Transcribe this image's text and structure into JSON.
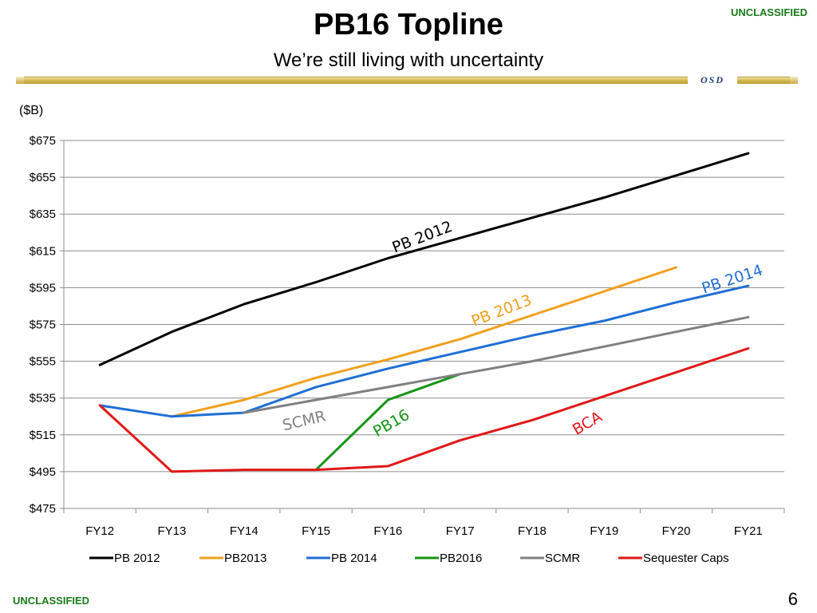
{
  "header": {
    "title": "PB16 Topline",
    "subtitle": "We’re still living with uncertainty",
    "classification_top": "UNCLASSIFIED",
    "logo_text": "OSD"
  },
  "footer": {
    "classification_bottom": "UNCLASSIFIED",
    "page_number": "6"
  },
  "chart_data": {
    "type": "line",
    "unit_label": "($B)",
    "x": [
      "FY12",
      "FY13",
      "FY14",
      "FY15",
      "FY16",
      "FY17",
      "FY18",
      "FY19",
      "FY20",
      "FY21"
    ],
    "ylim": [
      475,
      675
    ],
    "yticks": [
      "$475",
      "$495",
      "$515",
      "$535",
      "$555",
      "$575",
      "$595",
      "$615",
      "$635",
      "$655",
      "$675"
    ],
    "ytick_values": [
      475,
      495,
      515,
      535,
      555,
      575,
      595,
      615,
      635,
      655,
      675
    ],
    "grid": true,
    "legend_position": "bottom",
    "series": [
      {
        "name": "PB 2012",
        "color": "#000000",
        "values": [
          553,
          571,
          586,
          598,
          611,
          622,
          633,
          644,
          656,
          668
        ]
      },
      {
        "name": "PB2013",
        "color": "#f0a01e",
        "values": [
          null,
          525,
          534,
          546,
          556,
          567,
          580,
          593,
          606,
          null
        ]
      },
      {
        "name": "PB 2014",
        "color": "#1f6fd6",
        "values": [
          531,
          525,
          527,
          541,
          551,
          560,
          569,
          577,
          587,
          596
        ]
      },
      {
        "name": "PB2016",
        "color": "#169416",
        "values": [
          null,
          null,
          null,
          496,
          534,
          548,
          null,
          null,
          null,
          null
        ]
      },
      {
        "name": "SCMR",
        "color": "#808080",
        "values": [
          null,
          null,
          527,
          534,
          541,
          548,
          555,
          563,
          571,
          579
        ]
      },
      {
        "name": "Sequester Caps",
        "color": "#e01818",
        "values": [
          531,
          495,
          496,
          496,
          498,
          512,
          523,
          536,
          549,
          562
        ]
      }
    ],
    "annotations": [
      {
        "text": "PB 2012",
        "color": "#000000",
        "x": 4.5,
        "y": 620,
        "angle": -21
      },
      {
        "text": "PB 2013",
        "color": "#f0a01e",
        "x": 5.6,
        "y": 580,
        "angle": -21
      },
      {
        "text": "PB 2014",
        "color": "#1f6fd6",
        "x": 8.8,
        "y": 597,
        "angle": -18
      },
      {
        "text": "SCMR",
        "color": "#808080",
        "x": 2.85,
        "y": 520,
        "angle": -13
      },
      {
        "text": "PB16",
        "color": "#169416",
        "x": 4.08,
        "y": 519,
        "angle": -30
      },
      {
        "text": "BCA",
        "color": "#e01818",
        "x": 6.8,
        "y": 519,
        "angle": -30
      }
    ]
  }
}
